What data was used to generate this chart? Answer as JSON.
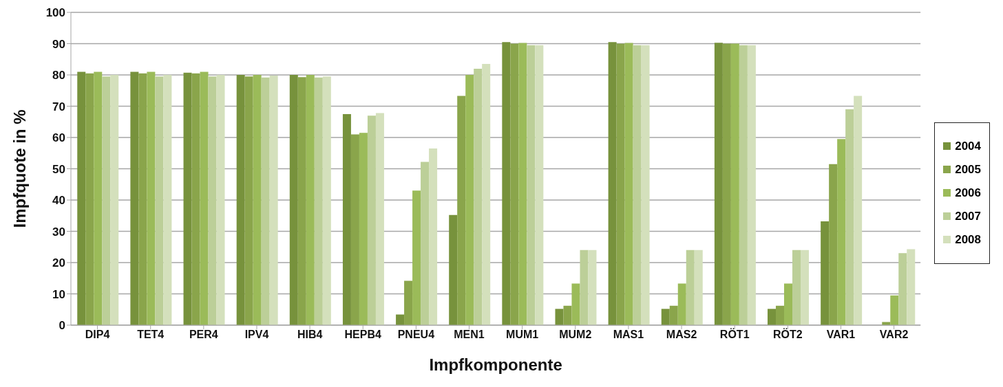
{
  "chart_data": {
    "type": "bar",
    "xlabel": "Impfkomponente",
    "ylabel": "Impfquote in %",
    "categories": [
      "DIP4",
      "TET4",
      "PER4",
      "IPV4",
      "HIB4",
      "HEPB4",
      "PNEU4",
      "MEN1",
      "MUM1",
      "MUM2",
      "MAS1",
      "MAS2",
      "RÖT1",
      "RÖT2",
      "VAR1",
      "VAR2"
    ],
    "series": [
      {
        "name": "2004",
        "color": "#77923c",
        "values": [
          81,
          81,
          80.7,
          80,
          80,
          67.5,
          3.4,
          35.2,
          90.5,
          5.2,
          90.5,
          5.2,
          90.3,
          5.2,
          33.2,
          null
        ]
      },
      {
        "name": "2005",
        "color": "#8aa54b",
        "values": [
          80.5,
          80.5,
          80.5,
          79.5,
          79.3,
          61,
          14.2,
          73.3,
          90,
          6.2,
          90,
          6.2,
          90,
          6.2,
          51.5,
          1
        ]
      },
      {
        "name": "2006",
        "color": "#9bbb59",
        "values": [
          81,
          81,
          81,
          80,
          80,
          61.5,
          43,
          80,
          90.2,
          13.3,
          90.2,
          13.3,
          90,
          13.3,
          59.5,
          9.5
        ]
      },
      {
        "name": "2007",
        "color": "#bccf98",
        "values": [
          79.5,
          79.5,
          79.5,
          79.2,
          79.2,
          67,
          52.2,
          82,
          89.5,
          24,
          89.5,
          24,
          89.5,
          24,
          69,
          23
        ]
      },
      {
        "name": "2008",
        "color": "#d4e0bc",
        "values": [
          80,
          80,
          80,
          79.8,
          79.5,
          67.8,
          56.5,
          83.5,
          89.5,
          24,
          89.5,
          24,
          89.5,
          24,
          73.3,
          24.3
        ]
      }
    ],
    "ylim": [
      0,
      100
    ],
    "yticks": [
      0,
      10,
      20,
      30,
      40,
      50,
      60,
      70,
      80,
      90,
      100
    ],
    "grid": "y",
    "legend": "right"
  }
}
